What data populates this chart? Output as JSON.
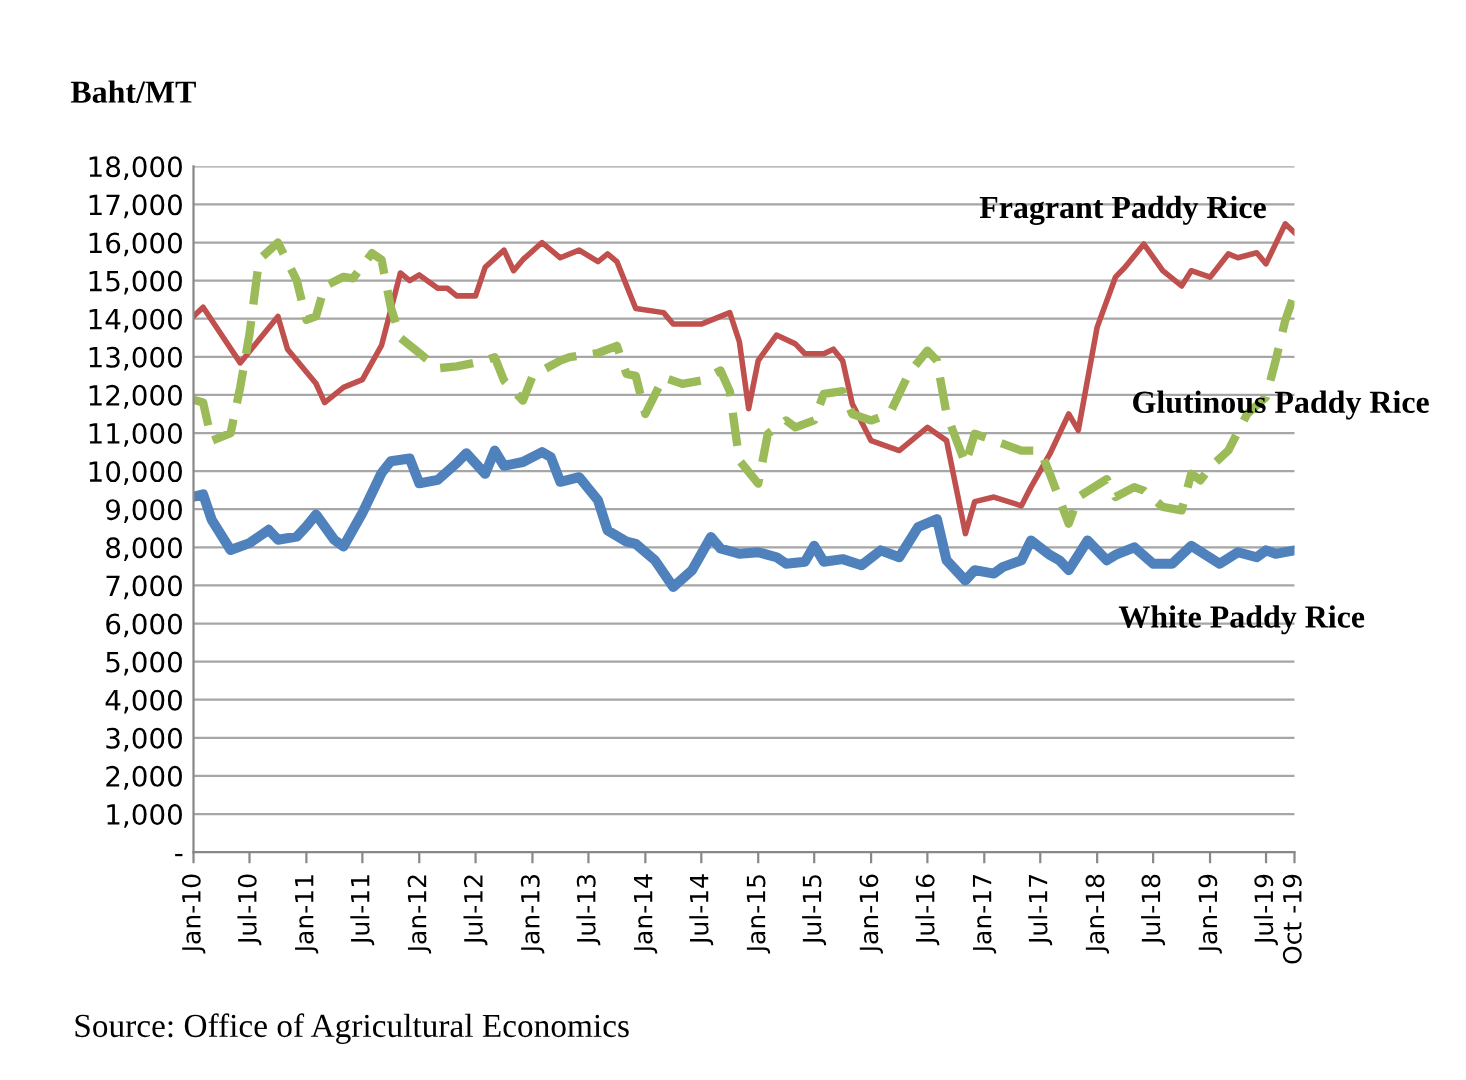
{
  "chart_data": {
    "type": "line",
    "ylabel": "Baht/MT",
    "annotations": [
      "Source: Office of Agricultural Economics"
    ],
    "series": [
      {
        "name": "Fragrant Paddy Rice",
        "color": "#c0504d",
        "line_style": "solid",
        "x": [
          "2010-01",
          "2010-02",
          "2010-06",
          "2010-10",
          "2010-11",
          "2011-02",
          "2011-03",
          "2011-05",
          "2011-07",
          "2011-09",
          "2011-11",
          "2011-12",
          "2012-01",
          "2012-03",
          "2012-04",
          "2012-05",
          "2012-07",
          "2012-08",
          "2012-10",
          "2012-11",
          "2012-12",
          "2013-02",
          "2013-04",
          "2013-06",
          "2013-08",
          "2013-09",
          "2013-10",
          "2013-12",
          "2014-03",
          "2014-04",
          "2014-07",
          "2014-10",
          "2014-11",
          "2014-12",
          "2015-01",
          "2015-03",
          "2015-05",
          "2015-06",
          "2015-08",
          "2015-09",
          "2015-10",
          "2015-11",
          "2016-01",
          "2016-04",
          "2016-07",
          "2016-09",
          "2016-11",
          "2016-12",
          "2017-02",
          "2017-05",
          "2017-06",
          "2017-08",
          "2017-10",
          "2017-11",
          "2018-01",
          "2018-03",
          "2018-04",
          "2018-06",
          "2018-08",
          "2018-10",
          "2018-11",
          "2019-01",
          "2019-03",
          "2019-04",
          "2019-06",
          "2019-07",
          "2019-09",
          "2019-10"
        ],
        "values": [
          14060,
          14300,
          12840,
          14060,
          13200,
          12300,
          11800,
          12200,
          12400,
          13300,
          15200,
          15000,
          15150,
          14800,
          14800,
          14600,
          14600,
          15350,
          15800,
          15260,
          15550,
          16000,
          15600,
          15800,
          15500,
          15700,
          15500,
          14270,
          14160,
          13860,
          13860,
          14160,
          13400,
          11640,
          12900,
          13570,
          13340,
          13080,
          13080,
          13200,
          12900,
          11770,
          10800,
          10540,
          11150,
          10800,
          8360,
          9200,
          9320,
          9090,
          9580,
          10450,
          11500,
          11070,
          13780,
          15090,
          15350,
          15960,
          15260,
          14860,
          15260,
          15090,
          15700,
          15600,
          15730,
          15440,
          16490,
          16260
        ]
      },
      {
        "name": "Glutinous Paddy Rice",
        "color": "#9bbb59",
        "line_style": "dashed",
        "x": [
          "2010-01",
          "2010-02",
          "2010-03",
          "2010-05",
          "2010-06",
          "2010-07",
          "2010-08",
          "2010-10",
          "2010-12",
          "2011-01",
          "2011-02",
          "2011-03",
          "2011-05",
          "2011-06",
          "2011-08",
          "2011-09",
          "2011-10",
          "2011-11",
          "2012-01",
          "2012-03",
          "2012-05",
          "2012-08",
          "2012-09",
          "2012-10",
          "2012-12",
          "2013-01",
          "2013-02",
          "2013-04",
          "2013-05",
          "2013-08",
          "2013-10",
          "2013-11",
          "2013-12",
          "2014-01",
          "2014-03",
          "2014-05",
          "2014-07",
          "2014-09",
          "2014-10",
          "2014-11",
          "2015-01",
          "2015-02",
          "2015-04",
          "2015-05",
          "2015-07",
          "2015-08",
          "2015-10",
          "2015-11",
          "2016-01",
          "2016-03",
          "2016-05",
          "2016-07",
          "2016-08",
          "2016-09",
          "2016-11",
          "2016-12",
          "2017-03",
          "2017-05",
          "2017-07",
          "2017-08",
          "2017-10",
          "2017-11",
          "2018-02",
          "2018-03",
          "2018-05",
          "2018-06",
          "2018-08",
          "2018-10",
          "2018-11",
          "2018-12",
          "2019-01",
          "2019-03",
          "2019-05",
          "2019-07",
          "2019-08",
          "2019-09",
          "2019-10"
        ],
        "values": [
          11870,
          11800,
          10800,
          11000,
          12200,
          13600,
          15550,
          16000,
          15000,
          13970,
          14060,
          14850,
          15100,
          15060,
          15720,
          15550,
          14300,
          13500,
          13100,
          12700,
          12750,
          12900,
          12990,
          12380,
          11850,
          12490,
          12640,
          12900,
          12990,
          13100,
          13290,
          12550,
          12500,
          11500,
          12460,
          12290,
          12380,
          12640,
          12100,
          10280,
          9670,
          10980,
          11330,
          11150,
          11330,
          12030,
          12100,
          11500,
          11330,
          11500,
          12550,
          13160,
          12900,
          11500,
          10190,
          10980,
          10720,
          10540,
          10540,
          9930,
          8620,
          9320,
          9790,
          9320,
          9580,
          9490,
          9060,
          8970,
          9930,
          9760,
          10100,
          10540,
          11500,
          11940,
          12900,
          13950,
          14650
        ]
      },
      {
        "name": "White Paddy Rice",
        "color": "#4f81bd",
        "line_style": "solid",
        "x": [
          "2010-01",
          "2010-02",
          "2010-03",
          "2010-05",
          "2010-07",
          "2010-09",
          "2010-10",
          "2010-12",
          "2011-01",
          "2011-02",
          "2011-04",
          "2011-05",
          "2011-07",
          "2011-09",
          "2011-10",
          "2011-12",
          "2012-01",
          "2012-03",
          "2012-05",
          "2012-06",
          "2012-08",
          "2012-09",
          "2012-10",
          "2012-12",
          "2013-02",
          "2013-03",
          "2013-04",
          "2013-06",
          "2013-08",
          "2013-09",
          "2013-11",
          "2013-12",
          "2014-02",
          "2014-04",
          "2014-06",
          "2014-08",
          "2014-09",
          "2014-11",
          "2015-01",
          "2015-03",
          "2015-04",
          "2015-06",
          "2015-07",
          "2015-08",
          "2015-10",
          "2015-12",
          "2016-02",
          "2016-04",
          "2016-06",
          "2016-08",
          "2016-09",
          "2016-11",
          "2016-12",
          "2017-02",
          "2017-03",
          "2017-05",
          "2017-06",
          "2017-08",
          "2017-09",
          "2017-10",
          "2017-12",
          "2018-02",
          "2018-03",
          "2018-05",
          "2018-07",
          "2018-09",
          "2018-11",
          "2019-02",
          "2019-04",
          "2019-06",
          "2019-07",
          "2019-08",
          "2019-10"
        ],
        "values": [
          9330,
          9390,
          8720,
          7930,
          8110,
          8460,
          8200,
          8280,
          8550,
          8860,
          8200,
          8020,
          8900,
          9950,
          10260,
          10330,
          9680,
          9770,
          10210,
          10470,
          9930,
          10540,
          10140,
          10240,
          10500,
          10370,
          9720,
          9840,
          9230,
          8440,
          8150,
          8090,
          7660,
          6960,
          7400,
          8270,
          7970,
          7830,
          7870,
          7740,
          7570,
          7620,
          8040,
          7620,
          7690,
          7530,
          7920,
          7740,
          8530,
          8740,
          7660,
          7130,
          7400,
          7310,
          7480,
          7660,
          8180,
          7800,
          7660,
          7400,
          8180,
          7660,
          7800,
          8000,
          7570,
          7570,
          8040,
          7570,
          7870,
          7740,
          7920,
          7830,
          7920
        ]
      }
    ],
    "xlim": [
      "2010-01",
      "2019-10"
    ],
    "xticks": [
      {
        "value": "2010-01",
        "label": "Jan-10"
      },
      {
        "value": "2010-07",
        "label": "Jul-10"
      },
      {
        "value": "2011-01",
        "label": "Jan-11"
      },
      {
        "value": "2011-07",
        "label": "Jul-11"
      },
      {
        "value": "2012-01",
        "label": "Jan-12"
      },
      {
        "value": "2012-07",
        "label": "Jul-12"
      },
      {
        "value": "2013-01",
        "label": "Jan-13"
      },
      {
        "value": "2013-07",
        "label": "Jul-13"
      },
      {
        "value": "2014-01",
        "label": "Jan-14"
      },
      {
        "value": "2014-07",
        "label": "Jul-14"
      },
      {
        "value": "2015-01",
        "label": "Jan-15"
      },
      {
        "value": "2015-07",
        "label": "Jul-15"
      },
      {
        "value": "2016-01",
        "label": "Jan-16"
      },
      {
        "value": "2016-07",
        "label": "Jul-16"
      },
      {
        "value": "2017-01",
        "label": "Jan-17"
      },
      {
        "value": "2017-07",
        "label": "Jul-17"
      },
      {
        "value": "2018-01",
        "label": "Jan-18"
      },
      {
        "value": "2018-07",
        "label": "Jul-18"
      },
      {
        "value": "2019-01",
        "label": "Jan-19"
      },
      {
        "value": "2019-07",
        "label": "Jul-19"
      },
      {
        "value": "2019-10",
        "label": "Oct -19"
      }
    ],
    "ylim": [
      0,
      18000
    ],
    "yticks": [
      {
        "value": 0,
        "label": "-"
      },
      {
        "value": 1000,
        "label": "1,000"
      },
      {
        "value": 2000,
        "label": "2,000"
      },
      {
        "value": 3000,
        "label": "3,000"
      },
      {
        "value": 4000,
        "label": "4,000"
      },
      {
        "value": 5000,
        "label": "5,000"
      },
      {
        "value": 6000,
        "label": "6,000"
      },
      {
        "value": 7000,
        "label": "7,000"
      },
      {
        "value": 8000,
        "label": "8,000"
      },
      {
        "value": 9000,
        "label": "9,000"
      },
      {
        "value": 10000,
        "label": "10,000"
      },
      {
        "value": 11000,
        "label": "11,000"
      },
      {
        "value": 12000,
        "label": "12,000"
      },
      {
        "value": 13000,
        "label": "13,000"
      },
      {
        "value": 14000,
        "label": "14,000"
      },
      {
        "value": 15000,
        "label": "15,000"
      },
      {
        "value": 16000,
        "label": "16,000"
      },
      {
        "value": 17000,
        "label": "17,000"
      },
      {
        "value": 18000,
        "label": "18,000"
      }
    ],
    "grid": "y",
    "legend": false,
    "marker": "none"
  }
}
